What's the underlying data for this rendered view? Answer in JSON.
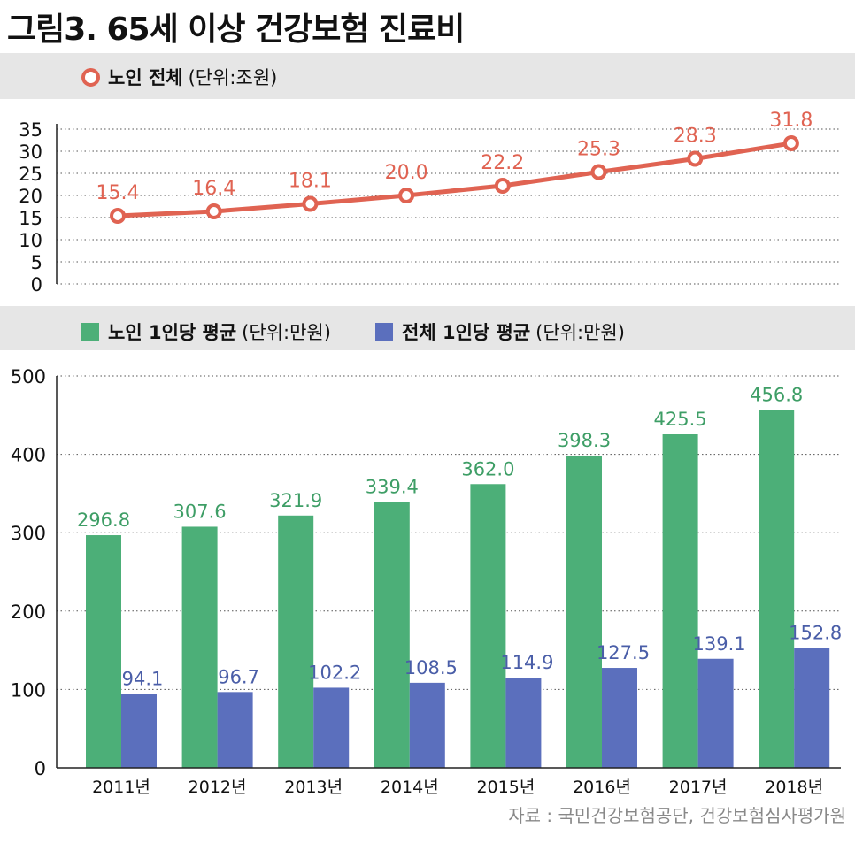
{
  "title": "그림3. 65세 이상 건강보험 진료비",
  "source": "자료 : 국민건강보험공단, 건강보험심사평가원",
  "colors": {
    "line": "#e06352",
    "elderly_bar": "#4caf78",
    "all_bar": "#5b6fbd"
  },
  "chart_data": [
    {
      "type": "line",
      "legend": {
        "series_label": "노인 전체",
        "unit": "(단위:조원)"
      },
      "x": [
        "2011",
        "2012",
        "2013",
        "2014",
        "2015",
        "2016",
        "2017",
        "2018"
      ],
      "series": [
        {
          "name": "노인 전체",
          "values": [
            15.4,
            16.4,
            18.1,
            20.0,
            22.2,
            25.3,
            28.3,
            31.8
          ],
          "labels": [
            "15.4",
            "16.4",
            "18.1",
            "20.0",
            "22.2",
            "25.3",
            "28.3",
            "31.8"
          ]
        }
      ],
      "yticks": [
        "0",
        "5",
        "10",
        "15",
        "20",
        "25",
        "30",
        "35"
      ],
      "ylim": [
        0,
        35
      ],
      "grid": "dotted horizontal"
    },
    {
      "type": "bar",
      "legend": [
        {
          "label": "노인 1인당 평균",
          "unit": "(단위:만원)"
        },
        {
          "label": "전체 1인당 평균",
          "unit": "(단위:만원)"
        }
      ],
      "categories": [
        "2011년",
        "2012년",
        "2013년",
        "2014년",
        "2015년",
        "2016년",
        "2017년",
        "2018년"
      ],
      "series": [
        {
          "name": "노인 1인당 평균",
          "values": [
            296.8,
            307.6,
            321.9,
            339.4,
            362.0,
            398.3,
            425.5,
            456.8
          ],
          "labels": [
            "296.8",
            "307.6",
            "321.9",
            "339.4",
            "362.0",
            "398.3",
            "425.5",
            "456.8"
          ]
        },
        {
          "name": "전체 1인당 평균",
          "values": [
            94.1,
            96.7,
            102.2,
            108.5,
            114.9,
            127.5,
            139.1,
            152.8
          ],
          "labels": [
            "94.1",
            "96.7",
            "102.2",
            "108.5",
            "114.9",
            "127.5",
            "139.1",
            "152.8"
          ]
        }
      ],
      "yticks": [
        "0",
        "100",
        "200",
        "300",
        "400",
        "500"
      ],
      "ylim": [
        0,
        500
      ],
      "grid": "dotted horizontal"
    }
  ]
}
